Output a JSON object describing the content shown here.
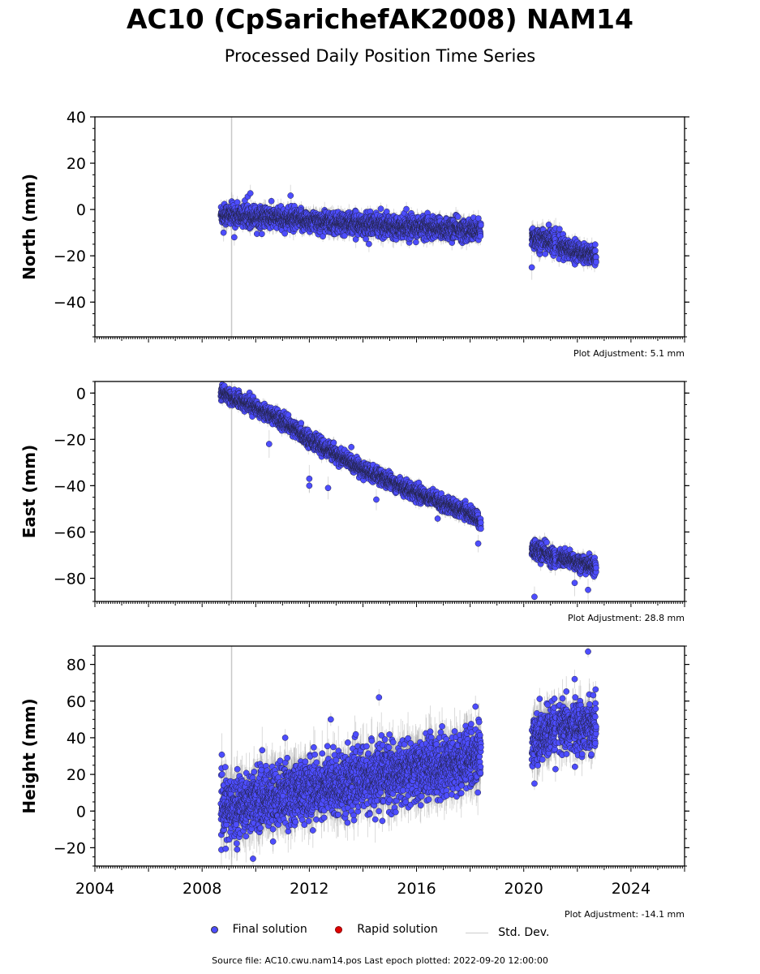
{
  "title": "AC10 (CpSarichefAK2008) NAM14",
  "subtitle": "Processed Daily Position Time Series",
  "colors": {
    "final": "#4d4dff",
    "rapid": "#e00000",
    "stddev": "#c8c8c8"
  },
  "legend": {
    "final": "Final solution",
    "rapid": "Rapid solution",
    "stddev": "Std. Dev."
  },
  "source": "Source file: AC10.cwu.nam14.pos  Last epoch plotted: 2022-09-20 12:00:00",
  "chart_data": [
    {
      "type": "scatter",
      "ylabel": "North (mm)",
      "xlim": [
        2004,
        2026
      ],
      "ylim": [
        -55,
        40
      ],
      "yticks": [
        -40,
        -20,
        0,
        20,
        40
      ],
      "adjustment": "Plot Adjustment: 5.1 mm",
      "vline_x": 2009.1,
      "segments": [
        {
          "x": [
            2008.7,
            2010.0,
            2012.0,
            2014.0,
            2016.0,
            2018.0,
            2018.4
          ],
          "y": [
            -2,
            -3,
            -5,
            -6.5,
            -7.5,
            -9,
            -9.5
          ],
          "noise": 2.2
        },
        {
          "x": [
            2020.3,
            2021.2
          ],
          "y": [
            -12,
            -14
          ],
          "noise": 2.5
        },
        {
          "x": [
            2021.3,
            2022.7
          ],
          "y": [
            -16,
            -20
          ],
          "noise": 2.0
        }
      ],
      "outliers": [
        {
          "x": 2009.8,
          "y": 7
        },
        {
          "x": 2011.3,
          "y": 6
        },
        {
          "x": 2020.3,
          "y": -25
        },
        {
          "x": 2008.8,
          "y": -10
        },
        {
          "x": 2009.2,
          "y": -12
        }
      ]
    },
    {
      "type": "scatter",
      "ylabel": "East (mm)",
      "xlim": [
        2004,
        2026
      ],
      "ylim": [
        -90,
        5
      ],
      "yticks": [
        -80,
        -60,
        -40,
        -20,
        0
      ],
      "adjustment": "Plot Adjustment: 28.8 mm",
      "vline_x": 2009.1,
      "segments": [
        {
          "x": [
            2008.7,
            2010.0,
            2011.0,
            2012.0,
            2014.0,
            2016.0,
            2018.0,
            2018.4
          ],
          "y": [
            0,
            -6,
            -12,
            -20,
            -33,
            -43,
            -52,
            -56
          ],
          "noise": 1.6
        },
        {
          "x": [
            2020.3,
            2021.2
          ],
          "y": [
            -67,
            -71
          ],
          "noise": 2.0
        },
        {
          "x": [
            2021.3,
            2022.7
          ],
          "y": [
            -71,
            -75
          ],
          "noise": 1.8
        }
      ],
      "outliers": [
        {
          "x": 2012.0,
          "y": -40
        },
        {
          "x": 2012.0,
          "y": -37
        },
        {
          "x": 2010.5,
          "y": -22
        },
        {
          "x": 2020.4,
          "y": -88
        },
        {
          "x": 2022.4,
          "y": -85
        },
        {
          "x": 2021.9,
          "y": -82
        },
        {
          "x": 2018.3,
          "y": -65
        },
        {
          "x": 2012.7,
          "y": -41
        },
        {
          "x": 2014.5,
          "y": -46
        }
      ]
    },
    {
      "type": "scatter",
      "ylabel": "Height (mm)",
      "xlim": [
        2004,
        2026
      ],
      "ylim": [
        -30,
        90
      ],
      "yticks": [
        -20,
        0,
        20,
        40,
        60,
        80
      ],
      "xticks": [
        2004,
        2008,
        2012,
        2016,
        2020,
        2024
      ],
      "adjustment": "Plot Adjustment: -14.1 mm",
      "vline_x": 2009.1,
      "segments": [
        {
          "x": [
            2008.7,
            2010.0,
            2012.0,
            2014.0,
            2016.0,
            2018.0,
            2018.4
          ],
          "y": [
            0,
            6,
            12,
            17,
            22,
            28,
            30
          ],
          "noise": 8
        },
        {
          "x": [
            2020.3,
            2021.2
          ],
          "y": [
            38,
            44
          ],
          "noise": 7
        },
        {
          "x": [
            2021.3,
            2022.7
          ],
          "y": [
            44,
            48
          ],
          "noise": 6.5
        }
      ],
      "outliers": [
        {
          "x": 2014.6,
          "y": 62
        },
        {
          "x": 2022.4,
          "y": 87
        },
        {
          "x": 2021.9,
          "y": 72
        },
        {
          "x": 2009.9,
          "y": -26
        },
        {
          "x": 2012.8,
          "y": 50
        },
        {
          "x": 2018.2,
          "y": 57
        },
        {
          "x": 2020.4,
          "y": 15
        },
        {
          "x": 2011.1,
          "y": 40
        }
      ]
    }
  ]
}
